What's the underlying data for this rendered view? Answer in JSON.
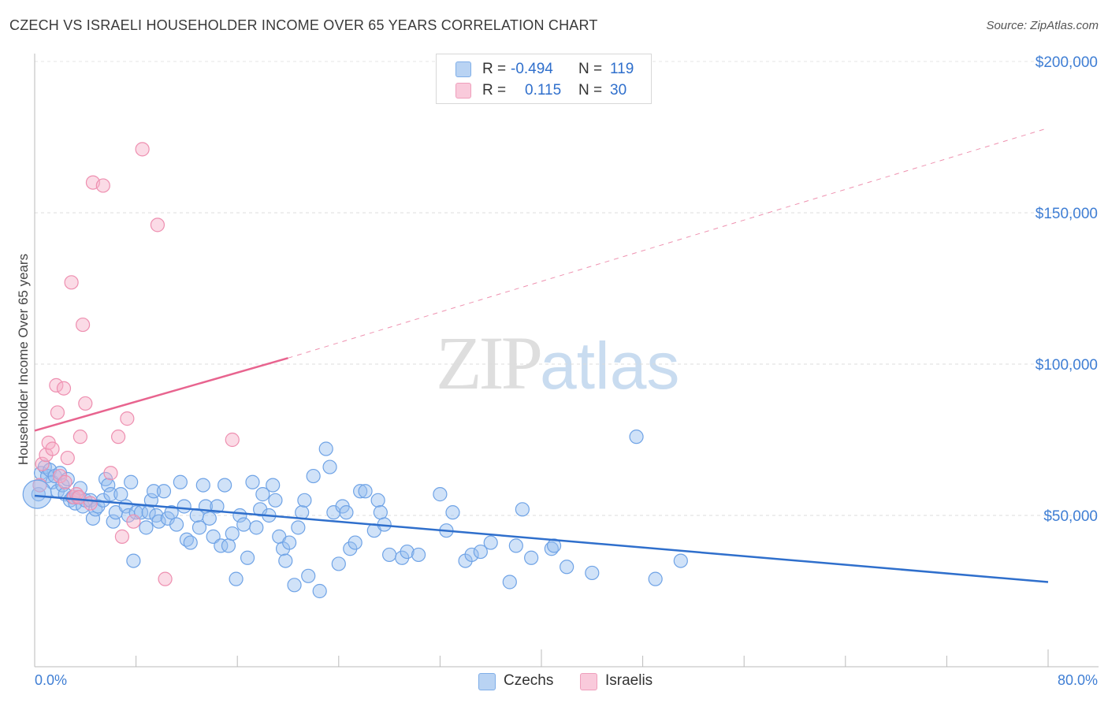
{
  "title": "CZECH VS ISRAELI HOUSEHOLDER INCOME OVER 65 YEARS CORRELATION CHART",
  "source": "Source: ZipAtlas.com",
  "watermark": {
    "zip": "ZIP",
    "atlas": "atlas"
  },
  "legend": [
    {
      "r_label": "R =",
      "r_value": "-0.494",
      "n_label": "N =",
      "n_value": "119",
      "color": "#a9c9f0"
    },
    {
      "r_label": "R =",
      "r_value": "0.115",
      "n_label": "N =",
      "n_value": "30",
      "color": "#f6b6cb"
    }
  ],
  "colors": {
    "czechs": "#6fa3e6",
    "israelis": "#ee8fb0",
    "czech_line": "#2f6fcc",
    "israeli_line": "#e8648f",
    "axis_text": "#3f7ed4"
  },
  "chart_data": {
    "type": "scatter",
    "title": "CZECH VS ISRAELI HOUSEHOLDER INCOME OVER 65 YEARS CORRELATION CHART",
    "xlabel": "",
    "ylabel": "Householder Income Over 65 years",
    "xlim": [
      0,
      80
    ],
    "ylim": [
      0,
      210000
    ],
    "x_tick_labels": [
      "0.0%",
      "80.0%"
    ],
    "y_ticks": [
      50000,
      100000,
      150000,
      200000
    ],
    "y_tick_labels": [
      "$50,000",
      "$100,000",
      "$150,000",
      "$200,000"
    ],
    "grid": "horizontal dashed",
    "legend_position": "top-center and bottom",
    "series": [
      {
        "name": "Czechs",
        "trend": {
          "x": [
            0,
            80
          ],
          "y": [
            56500,
            28000
          ],
          "style": "solid"
        },
        "points": [
          [
            0.3,
            57000
          ],
          [
            0.5,
            64000
          ],
          [
            0.8,
            66000
          ],
          [
            1.0,
            63000
          ],
          [
            1.2,
            65000
          ],
          [
            1.4,
            61000
          ],
          [
            1.6,
            63000
          ],
          [
            1.8,
            58000
          ],
          [
            2.0,
            64000
          ],
          [
            2.2,
            60000
          ],
          [
            2.4,
            57000
          ],
          [
            2.6,
            62000
          ],
          [
            2.8,
            55000
          ],
          [
            3.0,
            56000
          ],
          [
            3.2,
            54000
          ],
          [
            3.4,
            56000
          ],
          [
            3.6,
            59000
          ],
          [
            3.8,
            53000
          ],
          [
            4.0,
            55000
          ],
          [
            4.4,
            55000
          ],
          [
            4.6,
            49000
          ],
          [
            4.8,
            52000
          ],
          [
            5.0,
            53000
          ],
          [
            5.4,
            55000
          ],
          [
            5.6,
            62000
          ],
          [
            5.8,
            60000
          ],
          [
            6.0,
            57000
          ],
          [
            6.2,
            48000
          ],
          [
            6.4,
            51000
          ],
          [
            6.8,
            57000
          ],
          [
            7.2,
            53000
          ],
          [
            7.4,
            50000
          ],
          [
            7.6,
            61000
          ],
          [
            7.8,
            35000
          ],
          [
            8.0,
            51000
          ],
          [
            8.4,
            51000
          ],
          [
            8.8,
            46000
          ],
          [
            9.0,
            51000
          ],
          [
            9.2,
            55000
          ],
          [
            9.4,
            58000
          ],
          [
            9.6,
            50000
          ],
          [
            9.8,
            48000
          ],
          [
            10.2,
            58000
          ],
          [
            10.5,
            49000
          ],
          [
            10.8,
            51000
          ],
          [
            11.2,
            47000
          ],
          [
            11.5,
            61000
          ],
          [
            11.8,
            53000
          ],
          [
            12.0,
            42000
          ],
          [
            12.3,
            41000
          ],
          [
            12.8,
            50000
          ],
          [
            13.0,
            46000
          ],
          [
            13.3,
            60000
          ],
          [
            13.5,
            53000
          ],
          [
            13.8,
            49000
          ],
          [
            14.1,
            43000
          ],
          [
            14.4,
            53000
          ],
          [
            14.7,
            40000
          ],
          [
            15.0,
            60000
          ],
          [
            15.3,
            40000
          ],
          [
            15.6,
            44000
          ],
          [
            15.9,
            29000
          ],
          [
            16.2,
            50000
          ],
          [
            16.5,
            47000
          ],
          [
            16.8,
            36000
          ],
          [
            17.2,
            61000
          ],
          [
            17.5,
            46000
          ],
          [
            17.8,
            52000
          ],
          [
            18.0,
            57000
          ],
          [
            18.5,
            50000
          ],
          [
            18.8,
            60000
          ],
          [
            19.0,
            55000
          ],
          [
            19.3,
            43000
          ],
          [
            19.6,
            39000
          ],
          [
            19.8,
            35000
          ],
          [
            20.1,
            41000
          ],
          [
            20.5,
            27000
          ],
          [
            20.8,
            46000
          ],
          [
            21.1,
            51000
          ],
          [
            21.3,
            55000
          ],
          [
            21.6,
            30000
          ],
          [
            22.0,
            63000
          ],
          [
            22.5,
            25000
          ],
          [
            23.0,
            72000
          ],
          [
            23.3,
            66000
          ],
          [
            23.6,
            51000
          ],
          [
            24.0,
            34000
          ],
          [
            24.3,
            53000
          ],
          [
            24.6,
            51000
          ],
          [
            24.9,
            39000
          ],
          [
            25.3,
            41000
          ],
          [
            25.7,
            58000
          ],
          [
            26.1,
            58000
          ],
          [
            26.8,
            45000
          ],
          [
            27.1,
            55000
          ],
          [
            27.3,
            51000
          ],
          [
            27.6,
            47000
          ],
          [
            28.0,
            37000
          ],
          [
            29.0,
            36000
          ],
          [
            29.4,
            38000
          ],
          [
            30.3,
            37000
          ],
          [
            32.0,
            57000
          ],
          [
            32.5,
            45000
          ],
          [
            33.0,
            51000
          ],
          [
            34.0,
            35000
          ],
          [
            34.5,
            37000
          ],
          [
            35.2,
            38000
          ],
          [
            36.0,
            41000
          ],
          [
            37.5,
            28000
          ],
          [
            38.0,
            40000
          ],
          [
            38.5,
            52000
          ],
          [
            39.2,
            36000
          ],
          [
            40.8,
            39000
          ],
          [
            41.0,
            40000
          ],
          [
            42.0,
            33000
          ],
          [
            44.0,
            31000
          ],
          [
            47.5,
            76000
          ],
          [
            49.0,
            29000
          ],
          [
            51.0,
            35000
          ]
        ]
      },
      {
        "name": "Israelis",
        "trend": {
          "x": [
            0,
            20
          ],
          "y": [
            78000,
            102000
          ],
          "style": "solid",
          "extrapolated_to": [
            80,
            178000
          ]
        },
        "points": [
          [
            0.4,
            60000
          ],
          [
            0.6,
            67000
          ],
          [
            0.9,
            70000
          ],
          [
            1.1,
            74000
          ],
          [
            1.4,
            72000
          ],
          [
            1.7,
            93000
          ],
          [
            1.8,
            84000
          ],
          [
            2.0,
            63000
          ],
          [
            2.3,
            92000
          ],
          [
            2.6,
            69000
          ],
          [
            2.9,
            127000
          ],
          [
            3.1,
            56000
          ],
          [
            3.3,
            57000
          ],
          [
            3.6,
            76000
          ],
          [
            3.8,
            113000
          ],
          [
            4.0,
            87000
          ],
          [
            4.4,
            54000
          ],
          [
            4.6,
            160000
          ],
          [
            5.4,
            159000
          ],
          [
            6.0,
            64000
          ],
          [
            6.6,
            76000
          ],
          [
            6.9,
            43000
          ],
          [
            7.3,
            82000
          ],
          [
            7.8,
            48000
          ],
          [
            8.5,
            171000
          ],
          [
            9.7,
            146000
          ],
          [
            10.3,
            29000
          ],
          [
            15.6,
            75000
          ],
          [
            2.4,
            61000
          ],
          [
            3.5,
            56000
          ]
        ]
      }
    ]
  }
}
